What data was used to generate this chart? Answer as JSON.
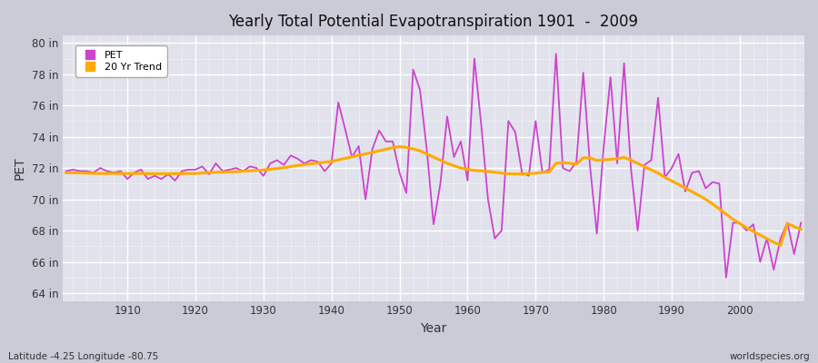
{
  "title": "Yearly Total Potential Evapotranspiration 1901  -  2009",
  "xlabel": "Year",
  "ylabel": "PET",
  "subtitle_left": "Latitude -4.25 Longitude -80.75",
  "subtitle_right": "worldspecies.org",
  "ylim": [
    63.5,
    80.5
  ],
  "xlim": [
    1900.5,
    2009.5
  ],
  "fig_bg_color": "#d8d8e0",
  "plot_bg_color": "#e8e8f0",
  "pet_color": "#cc44cc",
  "trend_color": "#ffaa00",
  "years": [
    1901,
    1902,
    1903,
    1904,
    1905,
    1906,
    1907,
    1908,
    1909,
    1910,
    1911,
    1912,
    1913,
    1914,
    1915,
    1916,
    1917,
    1918,
    1919,
    1920,
    1921,
    1922,
    1923,
    1924,
    1925,
    1926,
    1927,
    1928,
    1929,
    1930,
    1931,
    1932,
    1933,
    1934,
    1935,
    1936,
    1937,
    1938,
    1939,
    1940,
    1941,
    1942,
    1943,
    1944,
    1945,
    1946,
    1947,
    1948,
    1949,
    1950,
    1951,
    1952,
    1953,
    1954,
    1955,
    1956,
    1957,
    1958,
    1959,
    1960,
    1961,
    1962,
    1963,
    1964,
    1965,
    1966,
    1967,
    1968,
    1969,
    1970,
    1971,
    1972,
    1973,
    1974,
    1975,
    1976,
    1977,
    1978,
    1979,
    1980,
    1981,
    1982,
    1983,
    1984,
    1985,
    1986,
    1987,
    1988,
    1989,
    1990,
    1991,
    1992,
    1993,
    1994,
    1995,
    1996,
    1997,
    1998,
    1999,
    2000,
    2001,
    2002,
    2003,
    2004,
    2005,
    2006,
    2007,
    2008,
    2009
  ],
  "pet_values": [
    71.8,
    71.9,
    71.8,
    71.8,
    71.7,
    72.0,
    71.8,
    71.7,
    71.8,
    71.3,
    71.7,
    71.9,
    71.3,
    71.5,
    71.3,
    71.6,
    71.2,
    71.8,
    71.9,
    71.9,
    72.1,
    71.6,
    72.3,
    71.8,
    71.9,
    72.0,
    71.8,
    72.1,
    72.0,
    71.5,
    72.3,
    72.5,
    72.2,
    72.8,
    72.6,
    72.3,
    72.5,
    72.4,
    71.8,
    72.3,
    76.2,
    74.5,
    72.7,
    73.4,
    70.0,
    73.2,
    74.4,
    73.7,
    73.7,
    71.7,
    70.4,
    78.3,
    77.0,
    73.2,
    68.4,
    71.0,
    75.3,
    72.7,
    73.7,
    71.2,
    79.0,
    74.8,
    70.0,
    67.5,
    68.0,
    75.0,
    74.3,
    71.7,
    71.5,
    75.0,
    71.7,
    71.9,
    79.3,
    72.0,
    71.8,
    72.4,
    78.1,
    72.1,
    67.8,
    73.3,
    77.8,
    72.3,
    78.7,
    72.0,
    68.0,
    72.2,
    72.5,
    76.5,
    71.4,
    72.0,
    72.9,
    70.5,
    71.7,
    71.8,
    70.7,
    71.1,
    71.0,
    65.0,
    68.5,
    68.5,
    68.0,
    68.4,
    66.0,
    67.5,
    65.5,
    67.5,
    68.5,
    66.5,
    68.5
  ],
  "trend_values": [
    71.7,
    71.7,
    71.68,
    71.67,
    71.66,
    71.65,
    71.65,
    71.65,
    71.65,
    71.65,
    71.65,
    71.65,
    71.64,
    71.64,
    71.64,
    71.64,
    71.64,
    71.65,
    71.65,
    71.65,
    71.68,
    71.7,
    71.73,
    71.74,
    71.75,
    71.76,
    71.8,
    71.82,
    71.85,
    71.88,
    71.92,
    71.97,
    72.02,
    72.1,
    72.16,
    72.22,
    72.27,
    72.32,
    72.37,
    72.42,
    72.52,
    72.62,
    72.72,
    72.82,
    72.9,
    73.0,
    73.1,
    73.2,
    73.3,
    73.37,
    73.32,
    73.22,
    73.1,
    72.9,
    72.7,
    72.5,
    72.3,
    72.15,
    72.0,
    71.92,
    71.85,
    71.82,
    71.78,
    71.73,
    71.68,
    71.63,
    71.62,
    71.62,
    71.63,
    71.67,
    71.72,
    71.75,
    72.3,
    72.35,
    72.3,
    72.25,
    72.65,
    72.65,
    72.48,
    72.52,
    72.55,
    72.6,
    72.68,
    72.5,
    72.3,
    72.08,
    71.88,
    71.68,
    71.4,
    71.18,
    70.95,
    70.72,
    70.48,
    70.25,
    70.0,
    69.7,
    69.38,
    69.05,
    68.72,
    68.45,
    68.18,
    67.95,
    67.72,
    67.48,
    67.25,
    67.05,
    68.45,
    68.25,
    68.08
  ],
  "yticks": [
    64,
    66,
    68,
    70,
    72,
    74,
    76,
    78,
    80
  ],
  "xticks": [
    1910,
    1920,
    1930,
    1940,
    1950,
    1960,
    1970,
    1980,
    1990,
    2000
  ]
}
